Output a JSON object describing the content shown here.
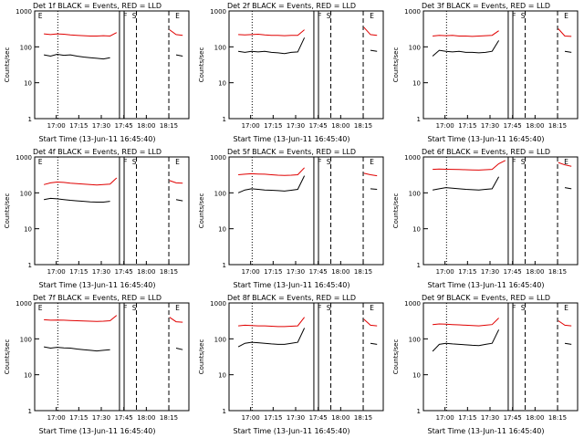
{
  "chart_data": [
    {
      "type": "line",
      "title": "Det 1f BLACK = Events, RED = LLD",
      "xlabel": "Start Time (13-Jun-11 16:45:40)",
      "ylabel": "Counts/sec",
      "yscale": "log",
      "ylim": [
        1,
        1000
      ],
      "yticks": [
        "1",
        "10",
        "100",
        "1000"
      ],
      "xticks": [
        "17:00",
        "17:15",
        "17:30",
        "17:45",
        "18:00",
        "18:15"
      ],
      "flags": [
        "E",
        "F",
        "S",
        "E"
      ],
      "series": [
        {
          "name": "Events",
          "color": "#000000",
          "values": [
            60,
            55,
            62,
            58,
            60,
            55,
            52,
            50,
            48,
            46,
            50,
            0,
            0,
            0,
            0,
            0,
            0,
            0,
            0,
            0,
            60,
            55
          ]
        },
        {
          "name": "LLD",
          "color": "#e00000",
          "values": [
            230,
            220,
            230,
            225,
            215,
            210,
            205,
            200,
            200,
            205,
            200,
            250,
            0,
            0,
            0,
            0,
            0,
            0,
            0,
            300,
            220,
            210
          ]
        }
      ]
    },
    {
      "type": "line",
      "title": "Det 2f BLACK = Events, RED = LLD",
      "xlabel": "Start Time (13-Jun-11 16:45:40)",
      "ylabel": "Counts/sec",
      "yscale": "log",
      "ylim": [
        1,
        1000
      ],
      "yticks": [
        "1",
        "10",
        "100",
        "1000"
      ],
      "xticks": [
        "17:00",
        "17:15",
        "17:30",
        "17:45",
        "18:00",
        "18:15"
      ],
      "flags": [
        "F",
        "S",
        "E"
      ],
      "series": [
        {
          "name": "Events",
          "color": "#000000",
          "values": [
            75,
            70,
            75,
            72,
            75,
            70,
            68,
            65,
            70,
            72,
            180,
            0,
            0,
            0,
            0,
            0,
            0,
            0,
            0,
            0,
            80,
            75
          ]
        },
        {
          "name": "LLD",
          "color": "#e00000",
          "values": [
            220,
            215,
            220,
            225,
            215,
            210,
            210,
            205,
            210,
            210,
            300,
            0,
            0,
            0,
            0,
            0,
            0,
            0,
            0,
            350,
            220,
            210
          ]
        }
      ]
    },
    {
      "type": "line",
      "title": "Det 3f BLACK = Events, RED = LLD",
      "xlabel": "Start Time (13-Jun-11 16:45:40)",
      "ylabel": "Counts/sec",
      "yscale": "log",
      "ylim": [
        1,
        1000
      ],
      "yticks": [
        "1",
        "10",
        "100",
        "1000"
      ],
      "xticks": [
        "17:00",
        "17:15",
        "17:30",
        "17:45",
        "18:00",
        "18:15"
      ],
      "flags": [
        "F",
        "S",
        "E"
      ],
      "series": [
        {
          "name": "Events",
          "color": "#000000",
          "values": [
            55,
            80,
            75,
            72,
            75,
            70,
            70,
            68,
            70,
            75,
            150,
            0,
            0,
            0,
            0,
            0,
            0,
            0,
            0,
            0,
            75,
            70
          ]
        },
        {
          "name": "LLD",
          "color": "#e00000",
          "values": [
            200,
            210,
            205,
            210,
            200,
            200,
            195,
            200,
            205,
            210,
            280,
            0,
            0,
            0,
            0,
            0,
            0,
            0,
            0,
            320,
            200,
            195
          ]
        }
      ]
    },
    {
      "type": "line",
      "title": "Det 4f BLACK = Events, RED = LLD",
      "xlabel": "Start Time (13-Jun-11 16:45:40)",
      "ylabel": "Counts/sec",
      "yscale": "log",
      "ylim": [
        1,
        1000
      ],
      "yticks": [
        "1",
        "10",
        "100",
        "1000"
      ],
      "xticks": [
        "17:00",
        "17:15",
        "17:30",
        "17:45",
        "18:00",
        "18:15"
      ],
      "flags": [
        "E",
        "F",
        "S",
        "E"
      ],
      "series": [
        {
          "name": "Events",
          "color": "#000000",
          "values": [
            65,
            70,
            68,
            65,
            62,
            60,
            58,
            56,
            55,
            55,
            58,
            0,
            0,
            0,
            0,
            0,
            0,
            0,
            0,
            0,
            65,
            60
          ]
        },
        {
          "name": "LLD",
          "color": "#e00000",
          "values": [
            170,
            190,
            200,
            195,
            185,
            180,
            175,
            170,
            165,
            170,
            175,
            260,
            0,
            0,
            0,
            0,
            0,
            0,
            0,
            220,
            190,
            185
          ]
        }
      ]
    },
    {
      "type": "line",
      "title": "Det 5f BLACK = Events, RED = LLD",
      "xlabel": "Start Time (13-Jun-11 16:45:40)",
      "ylabel": "Counts/sec",
      "yscale": "log",
      "ylim": [
        1,
        1000
      ],
      "yticks": [
        "1",
        "10",
        "100",
        "1000"
      ],
      "xticks": [
        "17:00",
        "17:15",
        "17:30",
        "17:45",
        "18:00",
        "18:15"
      ],
      "flags": [
        "F",
        "S",
        "E"
      ],
      "series": [
        {
          "name": "Events",
          "color": "#000000",
          "values": [
            100,
            120,
            130,
            125,
            120,
            118,
            115,
            112,
            118,
            125,
            300,
            0,
            0,
            0,
            0,
            0,
            0,
            0,
            0,
            0,
            130,
            125
          ]
        },
        {
          "name": "LLD",
          "color": "#e00000",
          "values": [
            320,
            330,
            340,
            335,
            330,
            320,
            310,
            305,
            310,
            320,
            500,
            0,
            0,
            0,
            0,
            0,
            0,
            0,
            0,
            350,
            320,
            300
          ]
        }
      ]
    },
    {
      "type": "line",
      "title": "Det 6f BLACK = Events, RED = LLD",
      "xlabel": "Start Time (13-Jun-11 16:45:40)",
      "ylabel": "Counts/sec",
      "yscale": "log",
      "ylim": [
        1,
        1000
      ],
      "yticks": [
        "1",
        "10",
        "100",
        "1000"
      ],
      "xticks": [
        "17:00",
        "17:15",
        "17:30",
        "17:45",
        "18:00",
        "18:15"
      ],
      "flags": [
        "F",
        "S",
        "E"
      ],
      "series": [
        {
          "name": "Events",
          "color": "#000000",
          "values": [
            120,
            130,
            140,
            135,
            130,
            125,
            122,
            120,
            125,
            130,
            280,
            0,
            0,
            0,
            0,
            0,
            0,
            0,
            0,
            0,
            140,
            130
          ]
        },
        {
          "name": "LLD",
          "color": "#e00000",
          "values": [
            450,
            460,
            455,
            450,
            445,
            440,
            435,
            430,
            440,
            450,
            650,
            800,
            0,
            0,
            0,
            0,
            0,
            0,
            0,
            700,
            600,
            550
          ]
        }
      ]
    },
    {
      "type": "line",
      "title": "Det 7f BLACK = Events, RED = LLD",
      "xlabel": "Start Time (13-Jun-11 16:45:40)",
      "ylabel": "Counts/sec",
      "yscale": "log",
      "ylim": [
        1,
        1000
      ],
      "yticks": [
        "1",
        "10",
        "100",
        "1000"
      ],
      "xticks": [
        "17:00",
        "17:15",
        "17:30",
        "17:45",
        "18:00",
        "18:15"
      ],
      "flags": [
        "E",
        "F",
        "S",
        "E"
      ],
      "series": [
        {
          "name": "Events",
          "color": "#000000",
          "values": [
            60,
            55,
            58,
            56,
            55,
            52,
            50,
            48,
            46,
            48,
            50,
            0,
            0,
            0,
            0,
            0,
            0,
            0,
            0,
            0,
            55,
            50
          ]
        },
        {
          "name": "LLD",
          "color": "#e00000",
          "values": [
            340,
            330,
            335,
            330,
            325,
            320,
            315,
            310,
            305,
            310,
            320,
            450,
            0,
            0,
            0,
            0,
            0,
            0,
            0,
            400,
            300,
            290
          ]
        }
      ]
    },
    {
      "type": "line",
      "title": "Det 8f BLACK = Events, RED = LLD",
      "xlabel": "Start Time (13-Jun-11 16:45:40)",
      "ylabel": "Counts/sec",
      "yscale": "log",
      "ylim": [
        1,
        1000
      ],
      "yticks": [
        "1",
        "10",
        "100",
        "1000"
      ],
      "xticks": [
        "17:00",
        "17:15",
        "17:30",
        "17:45",
        "18:00",
        "18:15"
      ],
      "flags": [
        "F",
        "S",
        "E"
      ],
      "series": [
        {
          "name": "Events",
          "color": "#000000",
          "values": [
            60,
            75,
            80,
            78,
            75,
            72,
            70,
            70,
            75,
            80,
            200,
            0,
            0,
            0,
            0,
            0,
            0,
            0,
            0,
            0,
            75,
            70
          ]
        },
        {
          "name": "LLD",
          "color": "#e00000",
          "values": [
            230,
            240,
            235,
            230,
            230,
            225,
            220,
            220,
            225,
            230,
            400,
            0,
            0,
            0,
            0,
            0,
            0,
            0,
            0,
            350,
            240,
            230
          ]
        }
      ]
    },
    {
      "type": "line",
      "title": "Det 9f BLACK = Events, RED = LLD",
      "xlabel": "Start Time (13-Jun-11 16:45:40)",
      "ylabel": "Counts/sec",
      "yscale": "log",
      "ylim": [
        1,
        1000
      ],
      "yticks": [
        "1",
        "10",
        "100",
        "1000"
      ],
      "xticks": [
        "17:00",
        "17:15",
        "17:30",
        "17:45",
        "18:00",
        "18:15"
      ],
      "flags": [
        "F",
        "S",
        "E"
      ],
      "series": [
        {
          "name": "Events",
          "color": "#000000",
          "values": [
            45,
            70,
            75,
            72,
            70,
            68,
            66,
            65,
            70,
            75,
            180,
            0,
            0,
            0,
            0,
            0,
            0,
            0,
            0,
            0,
            75,
            70
          ]
        },
        {
          "name": "LLD",
          "color": "#e00000",
          "values": [
            250,
            260,
            255,
            250,
            245,
            240,
            235,
            230,
            240,
            250,
            380,
            0,
            0,
            0,
            0,
            0,
            0,
            0,
            0,
            320,
            240,
            230
          ]
        }
      ]
    }
  ]
}
